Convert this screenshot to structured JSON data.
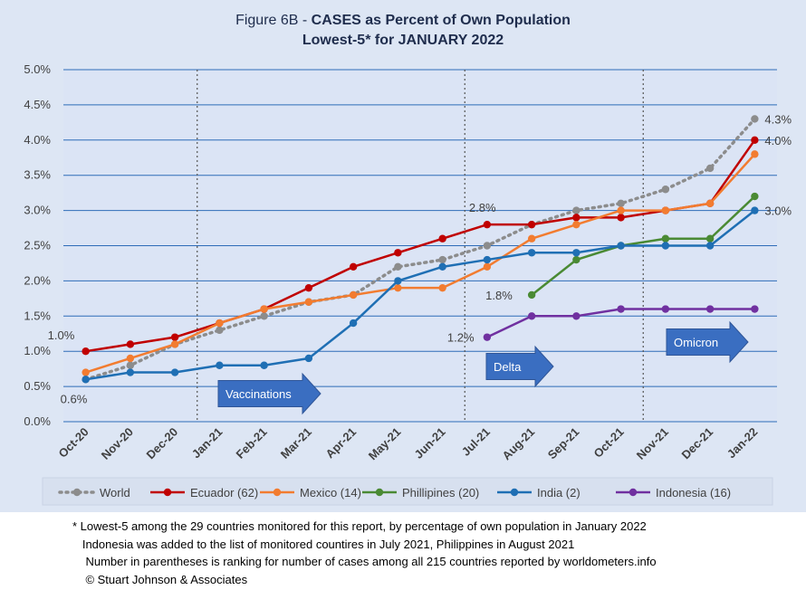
{
  "title": {
    "prefix": "Figure 6B - ",
    "main": "CASES as Percent of Own Population",
    "subtitle": "Lowest-5* for JANUARY 2022"
  },
  "chart_data": {
    "type": "line",
    "categories": [
      "Oct-20",
      "Nov-20",
      "Dec-20",
      "Jan-21",
      "Feb-21",
      "Mar-21",
      "Apr-21",
      "May-21",
      "Jun-21",
      "Jul-21",
      "Aug-21",
      "Sep-21",
      "Oct-21",
      "Nov-21",
      "Dec-21",
      "Jan-22"
    ],
    "ylim": [
      0,
      5.0
    ],
    "yticks": [
      "0.0%",
      "0.5%",
      "1.0%",
      "1.5%",
      "2.0%",
      "2.5%",
      "3.0%",
      "3.5%",
      "4.0%",
      "4.5%",
      "5.0%"
    ],
    "grid": true,
    "legend_position": "bottom",
    "series": [
      {
        "name": "World",
        "color": "#8c8c8c",
        "dashed": true,
        "values": [
          0.6,
          0.8,
          1.1,
          1.3,
          1.5,
          1.7,
          1.8,
          2.2,
          2.3,
          2.5,
          2.8,
          3.0,
          3.1,
          3.3,
          3.6,
          4.3
        ]
      },
      {
        "name": "Ecuador (62)",
        "color": "#c00000",
        "dashed": false,
        "values": [
          1.0,
          1.1,
          1.2,
          1.4,
          1.6,
          1.9,
          2.2,
          2.4,
          2.6,
          2.8,
          2.8,
          2.9,
          2.9,
          3.0,
          3.1,
          4.0
        ]
      },
      {
        "name": "Mexico (14)",
        "color": "#f27c30",
        "dashed": false,
        "values": [
          0.7,
          0.9,
          1.1,
          1.4,
          1.6,
          1.7,
          1.8,
          1.9,
          1.9,
          2.2,
          2.6,
          2.8,
          3.0,
          3.0,
          3.1,
          3.8
        ]
      },
      {
        "name": "Phillipines (20)",
        "color": "#4a8a34",
        "dashed": false,
        "values": [
          null,
          null,
          null,
          null,
          null,
          null,
          null,
          null,
          null,
          null,
          1.8,
          2.3,
          2.5,
          2.6,
          2.6,
          3.2
        ]
      },
      {
        "name": "India (2)",
        "color": "#1f6fb4",
        "dashed": false,
        "values": [
          0.6,
          0.7,
          0.7,
          0.8,
          0.8,
          0.9,
          1.4,
          2.0,
          2.2,
          2.3,
          2.4,
          2.4,
          2.5,
          2.5,
          2.5,
          3.0
        ]
      },
      {
        "name": "Indonesia (16)",
        "color": "#7030a0",
        "dashed": false,
        "values": [
          null,
          null,
          null,
          null,
          null,
          null,
          null,
          null,
          null,
          1.2,
          1.5,
          1.5,
          1.6,
          1.6,
          1.6,
          1.6
        ]
      }
    ],
    "data_labels": [
      {
        "text": "1.0%",
        "index": 0,
        "value": 1.0
      },
      {
        "text": "0.6%",
        "index": 0,
        "value": 0.6
      },
      {
        "text": "2.8%",
        "index": 9,
        "value": 2.8
      },
      {
        "text": "1.8%",
        "index": 10,
        "value": 1.8
      },
      {
        "text": "1.2%",
        "index": 9,
        "value": 1.2
      },
      {
        "text": "4.3%",
        "index": 15,
        "value": 4.3
      },
      {
        "text": "4.0%",
        "index": 15,
        "value": 4.0
      },
      {
        "text": "3.0%",
        "index": 15,
        "value": 3.0
      }
    ],
    "event_markers": [
      {
        "label": "Vaccinations",
        "index": 3
      },
      {
        "label": "Delta",
        "index": 9
      },
      {
        "label": "Omicron",
        "index": 13
      }
    ],
    "marker_line_color": "#555555",
    "arrow_color": "#3a6ec1",
    "plot_bg": "#dde6f4"
  },
  "footnotes": [
    "* Lowest-5 among the 29 countries monitored for this report, by percentage of own population in January 2022",
    "   Indonesia was added to the list of monitored countires in July 2021, Philippines in August 2021",
    "    Number in parentheses is ranking for number of cases among all 215 countries reported by worldometers.info",
    "    © Stuart Johnson & Associates"
  ]
}
